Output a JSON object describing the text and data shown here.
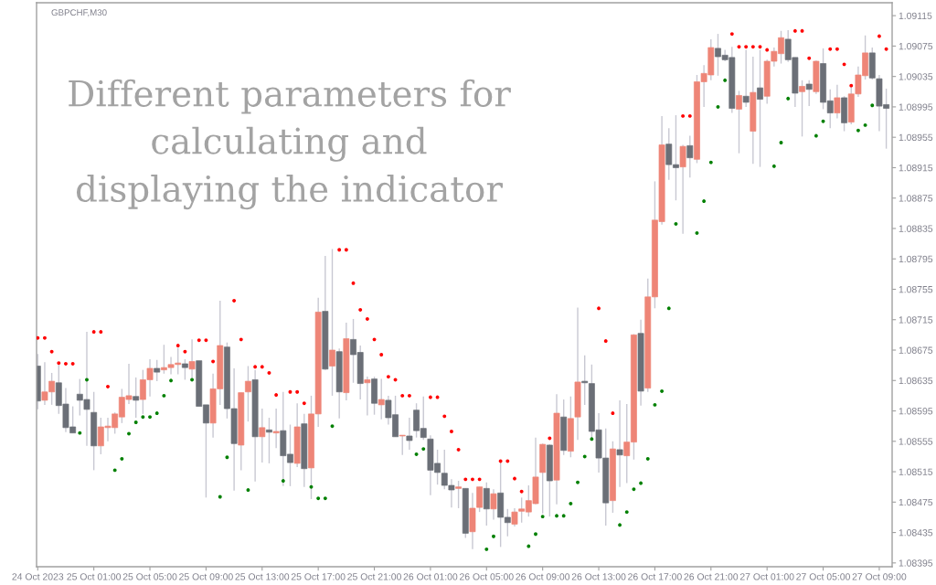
{
  "chart_data": {
    "type": "candlestick",
    "title": "GBPCHF,M30",
    "annotations": [
      "Different parameters for\ncalculating and\ndisplaying the indicator"
    ],
    "x": [
      "2023-10-24T21:00",
      "2023-10-24T21:30",
      "2023-10-24T22:00",
      "2023-10-24T22:30",
      "2023-10-24T23:00",
      "2023-10-24T23:30",
      "2023-10-25T00:00",
      "2023-10-25T00:30",
      "2023-10-25T01:00",
      "2023-10-25T01:30",
      "2023-10-25T02:00",
      "2023-10-25T02:30",
      "2023-10-25T03:00",
      "2023-10-25T03:30",
      "2023-10-25T04:00",
      "2023-10-25T04:30",
      "2023-10-25T05:00",
      "2023-10-25T05:30",
      "2023-10-25T06:00",
      "2023-10-25T06:30",
      "2023-10-25T07:00",
      "2023-10-25T07:30",
      "2023-10-25T08:00",
      "2023-10-25T08:30",
      "2023-10-25T09:00",
      "2023-10-25T09:30",
      "2023-10-25T10:00",
      "2023-10-25T10:30",
      "2023-10-25T11:00",
      "2023-10-25T11:30",
      "2023-10-25T12:00",
      "2023-10-25T12:30",
      "2023-10-25T13:00",
      "2023-10-25T13:30",
      "2023-10-25T14:00",
      "2023-10-25T14:30",
      "2023-10-25T15:00",
      "2023-10-25T15:30",
      "2023-10-25T16:00",
      "2023-10-25T16:30",
      "2023-10-25T17:00",
      "2023-10-25T17:30",
      "2023-10-25T18:00",
      "2023-10-25T18:30",
      "2023-10-25T19:00",
      "2023-10-25T19:30",
      "2023-10-25T20:00",
      "2023-10-25T20:30",
      "2023-10-25T21:00",
      "2023-10-25T21:30",
      "2023-10-25T22:00",
      "2023-10-25T22:30",
      "2023-10-25T23:00",
      "2023-10-25T23:30",
      "2023-10-26T00:00",
      "2023-10-26T00:30",
      "2023-10-26T01:00",
      "2023-10-26T01:30",
      "2023-10-26T02:00",
      "2023-10-26T02:30",
      "2023-10-26T03:00",
      "2023-10-26T03:30",
      "2023-10-26T04:00",
      "2023-10-26T04:30",
      "2023-10-26T05:00",
      "2023-10-26T05:30",
      "2023-10-26T06:00",
      "2023-10-26T06:30",
      "2023-10-26T07:00",
      "2023-10-26T07:30",
      "2023-10-26T08:00",
      "2023-10-26T08:30",
      "2023-10-26T09:00",
      "2023-10-26T09:30",
      "2023-10-26T10:00",
      "2023-10-26T10:30",
      "2023-10-26T11:00",
      "2023-10-26T11:30",
      "2023-10-26T12:00",
      "2023-10-26T12:30",
      "2023-10-26T13:00",
      "2023-10-26T13:30",
      "2023-10-26T14:00",
      "2023-10-26T14:30",
      "2023-10-26T15:00",
      "2023-10-26T15:30",
      "2023-10-26T16:00",
      "2023-10-26T16:30",
      "2023-10-26T17:00",
      "2023-10-26T17:30",
      "2023-10-26T18:00",
      "2023-10-26T18:30",
      "2023-10-26T19:00",
      "2023-10-26T19:30",
      "2023-10-26T20:00",
      "2023-10-26T20:30",
      "2023-10-26T21:00",
      "2023-10-26T21:30",
      "2023-10-26T22:00",
      "2023-10-26T22:30",
      "2023-10-26T23:00",
      "2023-10-26T23:30",
      "2023-10-27T00:00",
      "2023-10-27T00:30",
      "2023-10-27T01:00",
      "2023-10-27T01:30",
      "2023-10-27T02:00",
      "2023-10-27T02:30",
      "2023-10-27T03:00",
      "2023-10-27T03:30",
      "2023-10-27T04:00",
      "2023-10-27T04:30",
      "2023-10-27T05:00",
      "2023-10-27T05:30",
      "2023-10-27T06:00",
      "2023-10-27T06:30",
      "2023-10-27T07:00",
      "2023-10-27T07:30",
      "2023-10-27T08:00",
      "2023-10-27T08:30",
      "2023-10-27T09:00",
      "2023-10-27T09:30"
    ],
    "ohlc": [
      [
        1.08654,
        1.0867,
        1.08597,
        1.08608
      ],
      [
        1.08609,
        1.08659,
        1.08603,
        1.0862
      ],
      [
        1.0862,
        1.08645,
        1.08603,
        1.08634
      ],
      [
        1.08632,
        1.08658,
        1.08591,
        1.08602
      ],
      [
        1.08604,
        1.08625,
        1.08567,
        1.08573
      ],
      [
        1.08574,
        1.08601,
        1.08566,
        1.08566
      ],
      [
        1.08617,
        1.08637,
        1.08589,
        1.08609
      ],
      [
        1.0861,
        1.08699,
        1.08549,
        1.08597
      ],
      [
        1.08593,
        1.0862,
        1.08517,
        1.08549
      ],
      [
        1.08549,
        1.08586,
        1.08538,
        1.08574
      ],
      [
        1.08573,
        1.08586,
        1.08555,
        1.08575
      ],
      [
        1.08573,
        1.08593,
        1.08565,
        1.08591
      ],
      [
        1.08587,
        1.08624,
        1.08579,
        1.08613
      ],
      [
        1.0861,
        1.08657,
        1.08604,
        1.08615
      ],
      [
        1.08614,
        1.08639,
        1.08586,
        1.08609
      ],
      [
        1.0861,
        1.08649,
        1.08591,
        1.08636
      ],
      [
        1.08636,
        1.08663,
        1.08614,
        1.08651
      ],
      [
        1.08651,
        1.08662,
        1.08634,
        1.08646
      ],
      [
        1.08649,
        1.08682,
        1.08644,
        1.08652
      ],
      [
        1.08652,
        1.08666,
        1.08643,
        1.08656
      ],
      [
        1.08656,
        1.08678,
        1.08643,
        1.08658
      ],
      [
        1.08657,
        1.08663,
        1.08636,
        1.08652
      ],
      [
        1.0865,
        1.08689,
        1.08634,
        1.0866
      ],
      [
        1.08661,
        1.08661,
        1.08601,
        1.08601
      ],
      [
        1.08603,
        1.08603,
        1.08481,
        1.08579
      ],
      [
        1.08579,
        1.08644,
        1.0856,
        1.08624
      ],
      [
        1.08624,
        1.0874,
        1.08603,
        1.08681
      ],
      [
        1.08679,
        1.08685,
        1.08585,
        1.08598
      ],
      [
        1.08598,
        1.08651,
        1.0849,
        1.08552
      ],
      [
        1.0855,
        1.08619,
        1.08517,
        1.08619
      ],
      [
        1.0862,
        1.08654,
        1.08581,
        1.08634
      ],
      [
        1.08636,
        1.08649,
        1.08502,
        1.08561
      ],
      [
        1.08561,
        1.08598,
        1.08527,
        1.08573
      ],
      [
        1.0857,
        1.08586,
        1.08526,
        1.08567
      ],
      [
        1.08566,
        1.08598,
        1.08546,
        1.08568
      ],
      [
        1.08569,
        1.0862,
        1.08496,
        1.08536
      ],
      [
        1.08538,
        1.08577,
        1.08496,
        1.08527
      ],
      [
        1.08526,
        1.08605,
        1.08521,
        1.08574
      ],
      [
        1.08578,
        1.08591,
        1.08495,
        1.08519
      ],
      [
        1.0852,
        1.08615,
        1.08479,
        1.08591
      ],
      [
        1.08591,
        1.08744,
        1.08574,
        1.08725
      ],
      [
        1.08726,
        1.08799,
        1.08649,
        1.0865
      ],
      [
        1.08654,
        1.08808,
        1.08615,
        1.08675
      ],
      [
        1.08673,
        1.08677,
        1.08585,
        1.0862
      ],
      [
        1.08619,
        1.08711,
        1.08609,
        1.0869
      ],
      [
        1.08689,
        1.08716,
        1.08632,
        1.08669
      ],
      [
        1.08672,
        1.08681,
        1.0861,
        1.08631
      ],
      [
        1.08632,
        1.0864,
        1.08589,
        1.08636
      ],
      [
        1.08637,
        1.0864,
        1.0859,
        1.08605
      ],
      [
        1.08603,
        1.08637,
        1.08584,
        1.0861
      ],
      [
        1.08609,
        1.08615,
        1.08577,
        1.08586
      ],
      [
        1.0859,
        1.08615,
        1.08561,
        1.08561
      ],
      [
        1.08562,
        1.08563,
        1.08537,
        1.08563
      ],
      [
        1.08562,
        1.08586,
        1.08544,
        1.08556
      ],
      [
        1.08596,
        1.08605,
        1.0856,
        1.08569
      ],
      [
        1.08572,
        1.08614,
        1.08557,
        1.0856
      ],
      [
        1.08558,
        1.08563,
        1.08484,
        1.08517
      ],
      [
        1.08526,
        1.08544,
        1.08498,
        1.08514
      ],
      [
        1.08513,
        1.08544,
        1.08492,
        1.08497
      ],
      [
        1.08497,
        1.08505,
        1.08468,
        1.08491
      ],
      [
        1.08493,
        1.08503,
        1.08467,
        1.08495
      ],
      [
        1.08493,
        1.08493,
        1.08428,
        1.08434
      ],
      [
        1.08436,
        1.08487,
        1.08413,
        1.08467
      ],
      [
        1.08468,
        1.08495,
        1.08462,
        1.08495
      ],
      [
        1.08493,
        1.08501,
        1.08444,
        1.08466
      ],
      [
        1.08466,
        1.08492,
        1.08452,
        1.08486
      ],
      [
        1.08487,
        1.0853,
        1.08416,
        1.08455
      ],
      [
        1.08455,
        1.08466,
        1.0843,
        1.08448
      ],
      [
        1.08446,
        1.08467,
        1.08443,
        1.08462
      ],
      [
        1.08463,
        1.08481,
        1.08448,
        1.08466
      ],
      [
        1.08462,
        1.08497,
        1.08456,
        1.08477
      ],
      [
        1.08473,
        1.0856,
        1.08472,
        1.08508
      ],
      [
        1.08514,
        1.08552,
        1.0846,
        1.08551
      ],
      [
        1.0855,
        1.08551,
        1.08456,
        1.08503
      ],
      [
        1.08504,
        1.08617,
        1.08472,
        1.08592
      ],
      [
        1.08587,
        1.0861,
        1.08537,
        1.08543
      ],
      [
        1.08542,
        1.08614,
        1.08534,
        1.08585
      ],
      [
        1.08587,
        1.08731,
        1.08557,
        1.08633
      ],
      [
        1.08634,
        1.08668,
        1.08603,
        1.08632
      ],
      [
        1.08631,
        1.08656,
        1.08557,
        1.08568
      ],
      [
        1.0857,
        1.08592,
        1.08514,
        1.08533
      ],
      [
        1.08533,
        1.08572,
        1.08444,
        1.08474
      ],
      [
        1.08477,
        1.08555,
        1.08461,
        1.08545
      ],
      [
        1.08544,
        1.08609,
        1.08495,
        1.08537
      ],
      [
        1.08536,
        1.08604,
        1.085,
        1.08554
      ],
      [
        1.08554,
        1.08696,
        1.08531,
        1.08695
      ],
      [
        1.08697,
        1.08715,
        1.08602,
        1.08621
      ],
      [
        1.08625,
        1.08769,
        1.0862,
        1.08745
      ],
      [
        1.08745,
        1.08897,
        1.0873,
        1.08846
      ],
      [
        1.08844,
        1.08983,
        1.0884,
        1.08945
      ],
      [
        1.08946,
        1.08967,
        1.08899,
        1.08919
      ],
      [
        1.08919,
        1.08984,
        1.08872,
        1.08915
      ],
      [
        1.08916,
        1.08945,
        1.08828,
        1.08943
      ],
      [
        1.08944,
        1.08957,
        1.08902,
        1.08928
      ],
      [
        1.08926,
        1.09037,
        1.08921,
        1.09028
      ],
      [
        1.09028,
        1.0905,
        1.08995,
        1.09039
      ],
      [
        1.09037,
        1.09084,
        1.0903,
        1.09073
      ],
      [
        1.09072,
        1.09091,
        1.09036,
        1.09061
      ],
      [
        1.09063,
        1.0907,
        1.09055,
        1.09057
      ],
      [
        1.0906,
        1.09074,
        1.08987,
        1.08993
      ],
      [
        1.08992,
        1.09016,
        1.08934,
        1.0901
      ],
      [
        1.09009,
        1.0907,
        1.08995,
        1.09001
      ],
      [
        1.08963,
        1.09061,
        1.0892,
        1.09014
      ],
      [
        1.0902,
        1.0907,
        1.08916,
        1.09005
      ],
      [
        1.09009,
        1.09057,
        1.08999,
        1.09055
      ],
      [
        1.09055,
        1.09073,
        1.09048,
        1.09068
      ],
      [
        1.09065,
        1.09095,
        1.09052,
        1.09086
      ],
      [
        1.09084,
        1.09096,
        1.09054,
        1.09057
      ],
      [
        1.0906,
        1.0906,
        1.08995,
        1.09013
      ],
      [
        1.09015,
        1.0903,
        1.08956,
        1.09022
      ],
      [
        1.09025,
        1.0903,
        1.08996,
        1.09018
      ],
      [
        1.09015,
        1.09056,
        1.09012,
        1.09055
      ],
      [
        1.09052,
        1.09072,
        1.08992,
        1.09001
      ],
      [
        1.09003,
        1.09018,
        1.08967,
        1.08987
      ],
      [
        1.08987,
        1.09024,
        1.0898,
        1.09007
      ],
      [
        1.09007,
        1.09009,
        1.08963,
        1.08974
      ],
      [
        1.08975,
        1.09024,
        1.08972,
        1.09012
      ],
      [
        1.09012,
        1.09048,
        1.09008,
        1.09037
      ],
      [
        1.09036,
        1.09089,
        1.09031,
        1.09066
      ],
      [
        1.09066,
        1.09073,
        1.09031,
        1.09033
      ],
      [
        1.09032,
        1.09037,
        1.08963,
        1.08996
      ],
      [
        1.08998,
        1.09019,
        1.0894,
        1.08993
      ]
    ],
    "colors": [
      "#6b6f77",
      "#ee8577",
      "#ee8577",
      "#6b6f77",
      "#6b6f77",
      "#6b6f77",
      "#6b6f77",
      "#6b6f77",
      "#6b6f77",
      "#ee8577",
      "#ee8577",
      "#ee8577",
      "#ee8577",
      "#ee8577",
      "#6b6f77",
      "#ee8577",
      "#ee8577",
      "#6b6f77",
      "#ee8577",
      "#ee8577",
      "#ee8577",
      "#6b6f77",
      "#ee8577",
      "#6b6f77",
      "#6b6f77",
      "#ee8577",
      "#ee8577",
      "#6b6f77",
      "#6b6f77",
      "#ee8577",
      "#ee8577",
      "#6b6f77",
      "#ee8577",
      "#6b6f77",
      "#ee8577",
      "#6b6f77",
      "#6b6f77",
      "#ee8577",
      "#6b6f77",
      "#ee8577",
      "#ee8577",
      "#6b6f77",
      "#ee8577",
      "#6b6f77",
      "#ee8577",
      "#6b6f77",
      "#6b6f77",
      "#ee8577",
      "#6b6f77",
      "#ee8577",
      "#6b6f77",
      "#6b6f77",
      "#ee8577",
      "#6b6f77",
      "#6b6f77",
      "#6b6f77",
      "#6b6f77",
      "#6b6f77",
      "#6b6f77",
      "#6b6f77",
      "#ee8577",
      "#6b6f77",
      "#ee8577",
      "#ee8577",
      "#6b6f77",
      "#ee8577",
      "#6b6f77",
      "#6b6f77",
      "#ee8577",
      "#ee8577",
      "#ee8577",
      "#ee8577",
      "#ee8577",
      "#6b6f77",
      "#ee8577",
      "#6b6f77",
      "#ee8577",
      "#ee8577",
      "#6b6f77",
      "#6b6f77",
      "#6b6f77",
      "#6b6f77",
      "#ee8577",
      "#6b6f77",
      "#ee8577",
      "#ee8577",
      "#6b6f77",
      "#ee8577",
      "#ee8577",
      "#ee8577",
      "#6b6f77",
      "#6b6f77",
      "#ee8577",
      "#6b6f77",
      "#ee8577",
      "#ee8577",
      "#ee8577",
      "#6b6f77",
      "#6b6f77",
      "#6b6f77",
      "#ee8577",
      "#6b6f77",
      "#ee8577",
      "#6b6f77",
      "#ee8577",
      "#ee8577",
      "#ee8577",
      "#6b6f77",
      "#6b6f77",
      "#ee8577",
      "#6b6f77",
      "#ee8577",
      "#6b6f77",
      "#6b6f77",
      "#ee8577",
      "#6b6f77",
      "#ee8577",
      "#ee8577",
      "#ee8577",
      "#6b6f77",
      "#6b6f77",
      "#6b6f77"
    ],
    "series": [
      {
        "type": "scatter",
        "color": "#ff0000",
        "marker": "circle",
        "values": [
          1.08691,
          1.08691,
          1.08673,
          1.08658,
          1.08657,
          1.08657,
          null,
          null,
          1.08699,
          1.08699,
          1.08627,
          null,
          null,
          null,
          null,
          null,
          null,
          null,
          null,
          null,
          1.08681,
          1.08673,
          null,
          1.08688,
          1.08688,
          1.0866,
          null,
          null,
          1.0874,
          1.08689,
          null,
          1.08653,
          1.08653,
          1.08645,
          1.08616,
          null,
          1.0862,
          1.0862,
          1.08605,
          null,
          null,
          null,
          null,
          1.08807,
          1.08807,
          1.08763,
          1.08728,
          1.08716,
          1.08689,
          1.08669,
          1.0864,
          1.08636,
          1.08615,
          1.08615,
          null,
          null,
          1.08613,
          1.08613,
          1.08588,
          1.08568,
          1.08544,
          1.08505,
          1.08505,
          1.08505,
          null,
          null,
          1.08529,
          1.08529,
          1.08506,
          1.08489,
          null,
          null,
          null,
          1.08559,
          null,
          null,
          null,
          null,
          null,
          null,
          1.0873,
          1.08687,
          1.08592,
          null,
          null,
          null,
          null,
          null,
          null,
          null,
          null,
          null,
          1.08983,
          1.08983,
          null,
          null,
          null,
          null,
          null,
          1.09091,
          1.09074,
          1.09074,
          1.09074,
          1.09074,
          1.0907,
          null,
          null,
          null,
          1.09095,
          1.09095,
          1.09059,
          null,
          null,
          1.09071,
          1.09071,
          1.09051,
          1.09023,
          null,
          null,
          null,
          1.09088,
          1.09071
        ]
      },
      {
        "type": "scatter",
        "color": "#008000",
        "marker": "circle",
        "values": [
          null,
          null,
          null,
          null,
          null,
          null,
          1.08566,
          1.08636,
          null,
          null,
          null,
          1.08517,
          1.08532,
          1.08565,
          1.0858,
          1.08587,
          1.08587,
          1.08592,
          1.08615,
          1.08635,
          null,
          null,
          1.08636,
          null,
          null,
          null,
          1.08482,
          1.08534,
          null,
          null,
          1.08491,
          null,
          null,
          null,
          null,
          1.08503,
          null,
          null,
          null,
          1.08495,
          1.0848,
          1.0848,
          1.08575,
          null,
          null,
          null,
          null,
          null,
          null,
          null,
          null,
          null,
          null,
          null,
          1.08538,
          1.08545,
          null,
          null,
          null,
          null,
          null,
          null,
          null,
          null,
          1.08413,
          1.0843,
          null,
          null,
          null,
          null,
          1.08417,
          1.08433,
          1.08456,
          null,
          1.08457,
          1.08457,
          1.08473,
          1.08501,
          1.08535,
          1.08558,
          null,
          null,
          null,
          1.08445,
          1.08462,
          1.08492,
          1.085,
          1.08532,
          1.08603,
          1.08621,
          1.0873,
          1.08841,
          null,
          null,
          1.08829,
          1.08871,
          1.08922,
          1.08995,
          1.0903,
          null,
          null,
          null,
          null,
          null,
          null,
          1.08917,
          1.08948,
          1.09006,
          null,
          null,
          null,
          1.08957,
          1.08976,
          null,
          null,
          null,
          null,
          1.08964,
          1.08971,
          1.08997,
          null,
          null
        ]
      }
    ],
    "xlim": [
      "2023-10-24T20:55",
      "2023-10-27T09:55"
    ],
    "xticks": [
      {
        "value": "2023-10-24T21:00",
        "label": "24 Oct 2023"
      },
      {
        "value": "2023-10-25T01:00",
        "label": "25 Oct 01:00"
      },
      {
        "value": "2023-10-25T05:00",
        "label": "25 Oct 05:00"
      },
      {
        "value": "2023-10-25T09:00",
        "label": "25 Oct 09:00"
      },
      {
        "value": "2023-10-25T13:00",
        "label": "25 Oct 13:00"
      },
      {
        "value": "2023-10-25T17:00",
        "label": "25 Oct 17:00"
      },
      {
        "value": "2023-10-25T21:00",
        "label": "25 Oct 21:00"
      },
      {
        "value": "2023-10-26T01:00",
        "label": "26 Oct 01:00"
      },
      {
        "value": "2023-10-26T05:00",
        "label": "26 Oct 05:00"
      },
      {
        "value": "2023-10-26T09:00",
        "label": "26 Oct 09:00"
      },
      {
        "value": "2023-10-26T13:00",
        "label": "26 Oct 13:00"
      },
      {
        "value": "2023-10-26T17:00",
        "label": "26 Oct 17:00"
      },
      {
        "value": "2023-10-26T21:00",
        "label": "26 Oct 21:00"
      },
      {
        "value": "2023-10-27T01:00",
        "label": "27 Oct 01:00"
      },
      {
        "value": "2023-10-27T05:00",
        "label": "27 Oct 05:00"
      },
      {
        "value": "2023-10-27T09:00",
        "label": "27 Oct 09:00"
      }
    ],
    "ylim": [
      1.0839,
      1.09132
    ],
    "yticks": [
      1.08395,
      1.08435,
      1.08475,
      1.08515,
      1.08555,
      1.08595,
      1.08635,
      1.08675,
      1.08715,
      1.08755,
      1.08795,
      1.08835,
      1.08875,
      1.08915,
      1.08955,
      1.08995,
      1.09035,
      1.09075,
      1.09115
    ]
  }
}
